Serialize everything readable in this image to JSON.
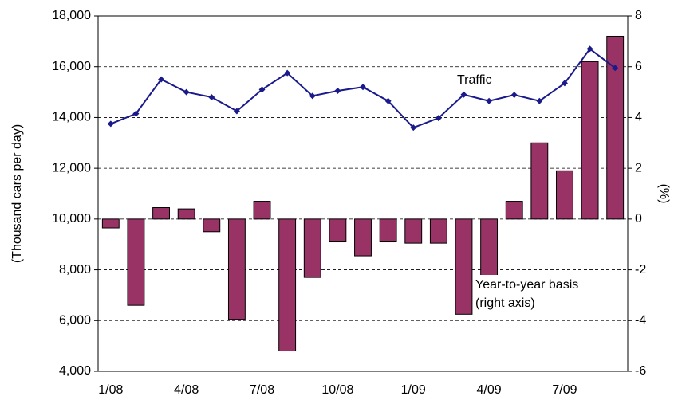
{
  "chart_data": {
    "type": "bar-line",
    "y_label": "(Thousand cars per day)",
    "y2_label": "(%)",
    "categories": [
      "1/08",
      null,
      null,
      "4/08",
      null,
      null,
      "7/08",
      null,
      null,
      "10/08",
      null,
      null,
      "1/09",
      null,
      null,
      "4/09",
      null,
      null,
      "7/09",
      null,
      null
    ],
    "series": [
      {
        "name": "Traffic",
        "type": "line",
        "color": "#1a1a8c",
        "axis": "y",
        "values": [
          13750,
          14150,
          15500,
          15000,
          14800,
          14250,
          15100,
          15750,
          14850,
          15050,
          15200,
          14650,
          13600,
          13980,
          14900,
          14650,
          14890,
          14650,
          15350,
          16700,
          15950
        ]
      },
      {
        "name": "Year-to-year basis",
        "type": "bar",
        "color": "#993366",
        "axis": "y2",
        "values": [
          -0.35,
          -3.4,
          0.45,
          0.4,
          -0.5,
          -3.95,
          0.7,
          -5.2,
          -2.3,
          -0.9,
          -1.45,
          -0.9,
          -0.95,
          -0.95,
          -3.75,
          -2.3,
          0.7,
          3.0,
          1.9,
          6.2,
          7.2
        ]
      }
    ],
    "annotations": [
      "(right axis)"
    ],
    "ylim": [
      4000,
      18000
    ],
    "yticks": [
      {
        "value": 4000,
        "label": "4,000"
      },
      {
        "value": 6000,
        "label": "6,000"
      },
      {
        "value": 8000,
        "label": "8,000"
      },
      {
        "value": 10000,
        "label": "10,000"
      },
      {
        "value": 12000,
        "label": "12,000"
      },
      {
        "value": 14000,
        "label": "14,000"
      },
      {
        "value": 16000,
        "label": "16,000"
      },
      {
        "value": 18000,
        "label": "18,000"
      }
    ],
    "y2lim": [
      -6,
      8
    ],
    "y2ticks": [
      -6,
      -4,
      -2,
      0,
      2,
      4,
      6,
      8
    ],
    "grid": true
  }
}
